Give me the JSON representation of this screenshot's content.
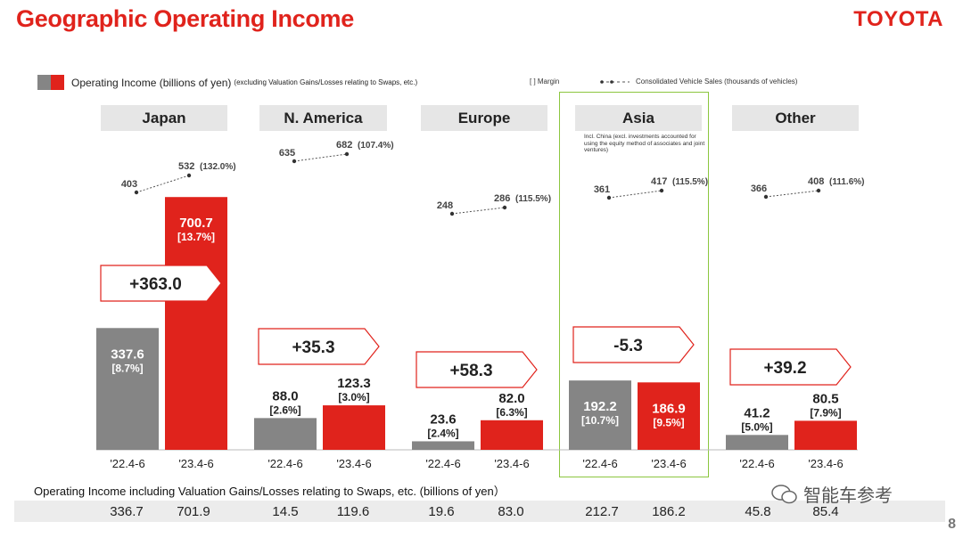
{
  "title": "Geographic Operating Income",
  "brand": "TOYOTA",
  "legend": {
    "income_label": "Operating Income (billions of yen)",
    "income_note": "(excluding Valuation Gains/Losses relating to Swaps, etc.)",
    "margin_label": "[      ] Margin",
    "sales_label": "Consolidated Vehicle Sales (thousands of vehicles)"
  },
  "asia_note": "Incl. China (excl. investments accounted for using the equity method of associates and joint ventures)",
  "colors": {
    "prior": "#858585",
    "current": "#e0231c",
    "asia_box": "#8cc63f"
  },
  "chart_data": {
    "type": "bar",
    "title": "Geographic Operating Income",
    "ylabel": "Operating Income (billions of yen)",
    "ylim": [
      0,
      800
    ],
    "periods": [
      "'22.4-6",
      "'23.4-6"
    ],
    "categories": [
      "Japan",
      "N. America",
      "Europe",
      "Asia",
      "Other"
    ],
    "series": [
      {
        "name": "'22.4-6",
        "values": [
          337.6,
          88.0,
          23.6,
          192.2,
          41.2
        ],
        "labels": [
          "337.6",
          "88.0",
          "23.6",
          "192.2",
          "41.2"
        ],
        "margins": [
          "[8.7%]",
          "[2.6%]",
          "[2.4%]",
          "[10.7%]",
          "[5.0%]"
        ]
      },
      {
        "name": "'23.4-6",
        "values": [
          700.7,
          123.3,
          82.0,
          186.9,
          80.5
        ],
        "labels": [
          "700.7",
          "123.3",
          "82.0",
          "186.9",
          "80.5"
        ],
        "margins": [
          "[13.7%]",
          "[3.0%]",
          "[6.3%]",
          "[9.5%]",
          "[7.9%]"
        ]
      }
    ],
    "changes": [
      "+363.0",
      "+35.3",
      "+58.3",
      "-5.3",
      "+39.2"
    ],
    "vehicle_sales": {
      "prior": [
        "403",
        "635",
        "248",
        "361",
        "366"
      ],
      "current": [
        "532",
        "682",
        "286",
        "417",
        "408"
      ],
      "ratio": [
        "(132.0%)",
        "(107.4%)",
        "(115.5%)",
        "(115.5%)",
        "(111.6%)"
      ]
    }
  },
  "swaps": {
    "label": "Operating Income including Valuation Gains/Losses relating to Swaps, etc. (billions of yen）",
    "values": [
      "336.7",
      "701.9",
      "14.5",
      "119.6",
      "19.6",
      "83.0",
      "212.7",
      "186.2",
      "45.8",
      "85.4"
    ]
  },
  "watermark": "智能车参考",
  "page_number": "8"
}
